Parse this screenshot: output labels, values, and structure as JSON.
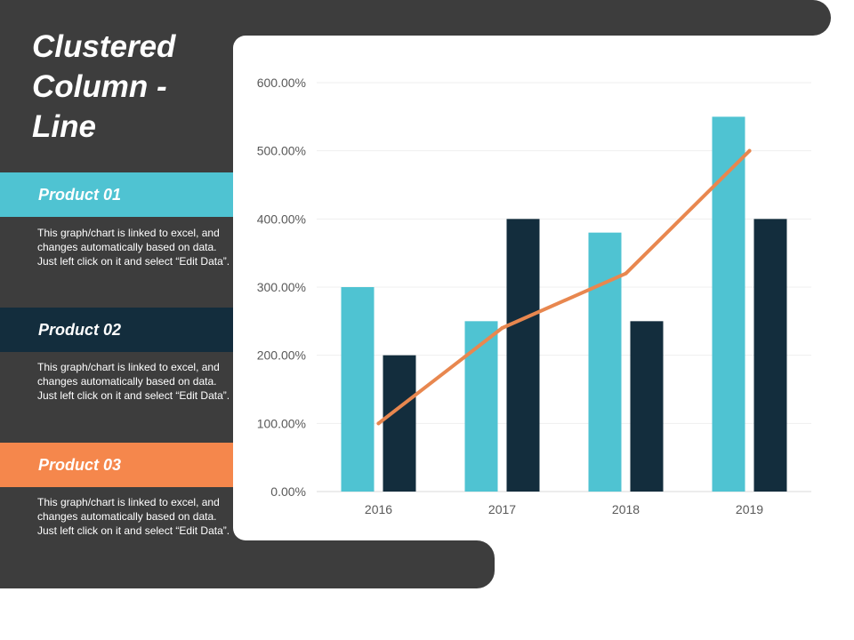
{
  "title": "Clustered Column - Line",
  "products": [
    {
      "name": "Product 01",
      "description": "This graph/chart is linked to excel, and changes automatically based on data. Just left click on it and select “Edit Data”.",
      "color": "#4fc3d2"
    },
    {
      "name": "Product 02",
      "description": "This graph/chart is linked to excel, and changes automatically based on data. Just left click on it and select “Edit Data”.",
      "color": "#132d3d"
    },
    {
      "name": "Product 03",
      "description": "This graph/chart is linked to excel, and changes automatically based on data. Just left click on it and select “Edit Data”.",
      "color": "#f5874c"
    }
  ],
  "chart_data": {
    "type": "bar",
    "categories": [
      "2016",
      "2017",
      "2018",
      "2019"
    ],
    "series": [
      {
        "name": "Product 01",
        "type": "bar",
        "color": "#4fc3d2",
        "values": [
          300,
          250,
          380,
          550
        ]
      },
      {
        "name": "Product 02",
        "type": "bar",
        "color": "#132d3d",
        "values": [
          200,
          400,
          250,
          400
        ]
      },
      {
        "name": "Product 03",
        "type": "line",
        "color": "#e8874f",
        "values": [
          100,
          240,
          320,
          500
        ]
      }
    ],
    "ylim": [
      0,
      600
    ],
    "yticks": [
      "0.00%",
      "100.00%",
      "200.00%",
      "300.00%",
      "400.00%",
      "500.00%",
      "600.00%"
    ],
    "ytick_values": [
      0,
      100,
      200,
      300,
      400,
      500,
      600
    ],
    "grid": true,
    "xlabel": "",
    "ylabel": ""
  }
}
